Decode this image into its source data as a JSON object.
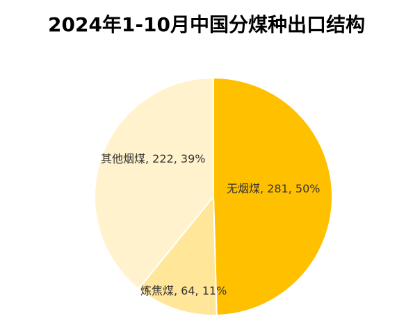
{
  "chart_data": {
    "type": "pie",
    "title": "2024年1-10月中国分煤种出口结构",
    "slices": [
      {
        "name": "无烟煤",
        "value": 281,
        "percent": "50%",
        "color": "#FFC000"
      },
      {
        "name": "炼焦煤",
        "value": 64,
        "percent": "11%",
        "color": "#FFE699"
      },
      {
        "name": "其他烟煤",
        "value": 222,
        "percent": "39%",
        "color": "#FFF2CC"
      }
    ],
    "data_labels": [
      "无烟煤, 281, 50%",
      "炼焦煤, 64, 11%",
      "其他烟煤, 222, 39%"
    ],
    "start_angle": "12 o'clock",
    "direction": "clockwise",
    "legend": "none"
  }
}
